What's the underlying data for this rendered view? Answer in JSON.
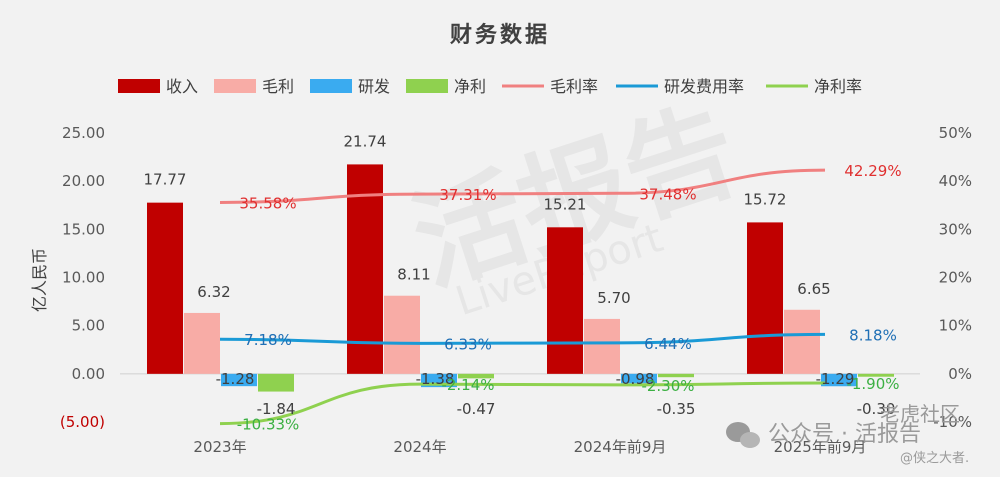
{
  "chart_data": {
    "type": "bar",
    "title": "财务数据",
    "ylabel": "亿人民币",
    "y_left_ticks": [
      "25.00",
      "20.00",
      "15.00",
      "10.00",
      "5.00",
      "0.00",
      "(5.00)"
    ],
    "y_right_ticks": [
      "50%",
      "40%",
      "30%",
      "20%",
      "10%",
      "0%",
      "-10%"
    ],
    "ylim_left": [
      -5,
      25
    ],
    "ylim_right": [
      -10,
      50
    ],
    "categories": [
      "2023年",
      "2024年",
      "2024年前9月",
      "2025年前9月"
    ],
    "bar_series": [
      {
        "name": "收入",
        "color": "#c00000",
        "values": [
          17.77,
          21.74,
          15.21,
          15.72
        ],
        "labels": [
          "17.77",
          "21.74",
          "15.21",
          "15.72"
        ]
      },
      {
        "name": "毛利",
        "color": "#f8aca6",
        "values": [
          6.32,
          8.11,
          5.7,
          6.65
        ],
        "labels": [
          "6.32",
          "8.11",
          "5.70",
          "6.65"
        ]
      },
      {
        "name": "研发",
        "color": "#3aabf0",
        "values": [
          -1.28,
          -1.38,
          -0.98,
          -1.29
        ],
        "labels": [
          "-1.28",
          "-1.38",
          "-0.98",
          "-1.29"
        ]
      },
      {
        "name": "净利",
        "color": "#8fd14f",
        "values": [
          -1.84,
          -0.47,
          -0.35,
          -0.3
        ],
        "labels": [
          "-1.84",
          "-0.47",
          "-0.35",
          "-0.30"
        ]
      }
    ],
    "line_series": [
      {
        "name": "毛利率",
        "color": "#f08080",
        "values": [
          35.58,
          37.31,
          37.48,
          42.29
        ],
        "labels": [
          "35.58%",
          "37.31%",
          "37.48%",
          "42.29%"
        ],
        "label_color": "#e03030"
      },
      {
        "name": "研发费用率",
        "color": "#1a9ad6",
        "values": [
          7.18,
          6.33,
          6.44,
          8.18
        ],
        "labels": [
          "7.18%",
          "6.33%",
          "6.44%",
          "8.18%"
        ],
        "label_color": "#1f6fb5"
      },
      {
        "name": "净利率",
        "color": "#8fd14f",
        "values": [
          -10.33,
          -2.14,
          -2.3,
          -1.9
        ],
        "labels": [
          "-10.33%",
          "-2.14%",
          "-2.30%",
          "-1.90%"
        ],
        "label_color": "#3cb043"
      }
    ],
    "legend_position": "top",
    "grid": false
  },
  "watermark": {
    "text": "活报告",
    "subtext": "LiveReport"
  },
  "footer": {
    "wechat": "公众号 · 活报告",
    "community": "老虎社区",
    "author": "@侠之大者."
  }
}
